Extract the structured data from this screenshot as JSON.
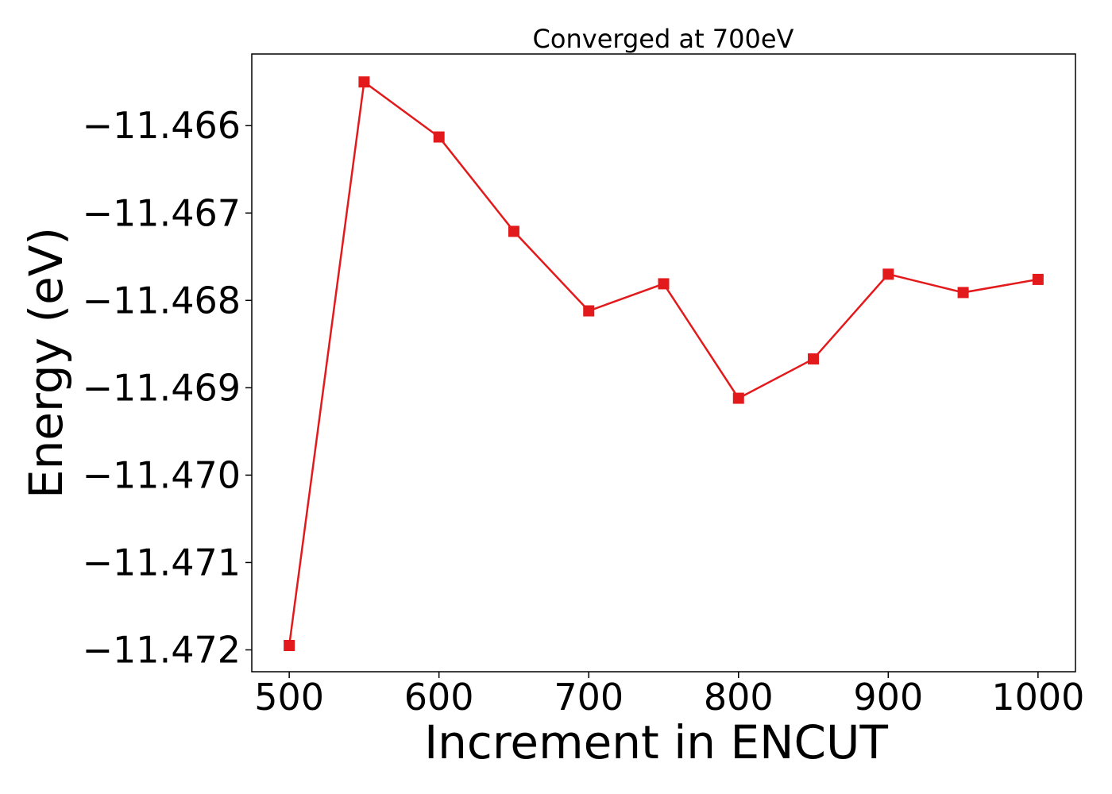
{
  "chart_data": {
    "type": "line",
    "title": "Converged at 700eV",
    "xlabel": "Increment in ENCUT",
    "ylabel": "Energy (eV)",
    "xlim": [
      475,
      1025
    ],
    "ylim": [
      -11.47225,
      -11.46518
    ],
    "xticks": [
      500,
      600,
      700,
      800,
      900,
      1000
    ],
    "yticks": [
      -11.466,
      -11.467,
      -11.468,
      -11.469,
      -11.47,
      -11.471,
      -11.472
    ],
    "ytick_labels": [
      "−11.466",
      "−11.467",
      "−11.468",
      "−11.469",
      "−11.470",
      "−11.471",
      "−11.472"
    ],
    "grid": false,
    "legend": "none",
    "series": [
      {
        "color": "#e31a1c",
        "marker": "square",
        "x": [
          500,
          550,
          600,
          650,
          700,
          750,
          800,
          850,
          900,
          950,
          1000
        ],
        "y": [
          -11.47195,
          -11.4655,
          -11.46613,
          -11.46721,
          -11.46812,
          -11.46781,
          -11.46912,
          -11.46867,
          -11.4677,
          -11.46791,
          -11.46776
        ]
      }
    ]
  }
}
